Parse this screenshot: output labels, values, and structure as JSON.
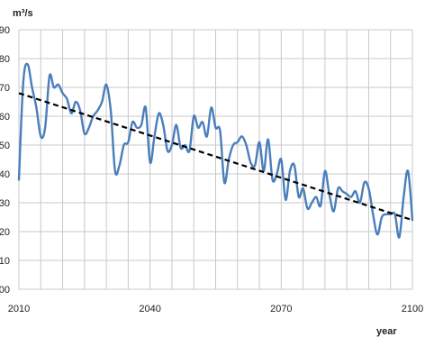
{
  "chart_data": {
    "type": "line",
    "title": "",
    "xlabel": "year",
    "ylabel": "m³/s",
    "xlim": [
      2010,
      2100
    ],
    "ylim": [
      0,
      90
    ],
    "y_ticks": [
      "00",
      "10",
      "20",
      "30",
      "40",
      "50",
      "60",
      "70",
      "80",
      "90"
    ],
    "x_ticks": [
      "2010",
      "2040",
      "2070",
      "2100"
    ],
    "grid": true,
    "legend": "none",
    "series": [
      {
        "style": "solid",
        "color": "#4a7ebb",
        "x": [
          2010,
          2011,
          2012,
          2013,
          2014,
          2015,
          2016,
          2017,
          2018,
          2019,
          2020,
          2021,
          2022,
          2023,
          2024,
          2025,
          2026,
          2027,
          2028,
          2029,
          2030,
          2031,
          2032,
          2033,
          2034,
          2035,
          2036,
          2037,
          2038,
          2039,
          2040,
          2041,
          2042,
          2043,
          2044,
          2045,
          2046,
          2047,
          2048,
          2049,
          2050,
          2051,
          2052,
          2053,
          2054,
          2055,
          2056,
          2057,
          2058,
          2059,
          2060,
          2061,
          2062,
          2063,
          2064,
          2065,
          2066,
          2067,
          2068,
          2069,
          2070,
          2071,
          2072,
          2073,
          2074,
          2075,
          2076,
          2077,
          2078,
          2079,
          2080,
          2081,
          2082,
          2083,
          2084,
          2085,
          2086,
          2087,
          2088,
          2089,
          2090,
          2091,
          2092,
          2093,
          2094,
          2095,
          2096,
          2097,
          2098,
          2099,
          2100
        ],
        "y": [
          38,
          72,
          78,
          70,
          63,
          53,
          56,
          74,
          70,
          71,
          68,
          66,
          61,
          65,
          62,
          54,
          56,
          60,
          62,
          65,
          71,
          62,
          41,
          43,
          50,
          51,
          58,
          56,
          57,
          63,
          44,
          53,
          61,
          57,
          48,
          50,
          57,
          49,
          50,
          48,
          60,
          56,
          58,
          53,
          63,
          56,
          55,
          37,
          45,
          50,
          51,
          53,
          50,
          44,
          43,
          51,
          41,
          52,
          38,
          40,
          45,
          31,
          41,
          43,
          32,
          35,
          28,
          30,
          32,
          29,
          41,
          33,
          27,
          35,
          34,
          33,
          32,
          34,
          30,
          37,
          35,
          26,
          19,
          25,
          26,
          26,
          26,
          18,
          32,
          41,
          24
        ]
      },
      {
        "style": "dashed",
        "color": "#000000",
        "x": [
          2010,
          2100
        ],
        "y": [
          68,
          24
        ]
      }
    ]
  }
}
